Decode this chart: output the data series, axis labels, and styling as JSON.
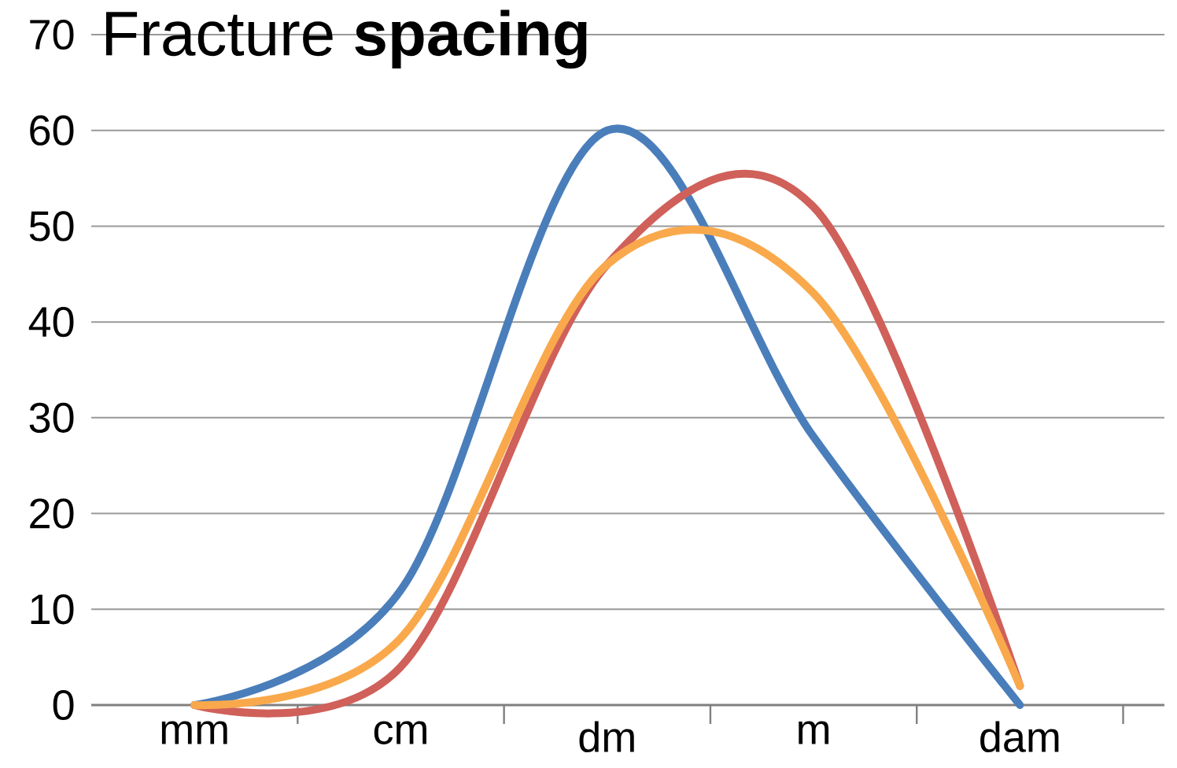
{
  "chart_data": {
    "type": "line",
    "title": "Fracture **spacing**",
    "categories": [
      "mm",
      "cm",
      "dm",
      "m",
      "dam"
    ],
    "series": [
      {
        "color": "#4a7ebb",
        "values": [
          0,
          12,
          60,
          28,
          0
        ]
      },
      {
        "color": "#d0605a",
        "values": [
          0,
          4,
          46,
          52,
          2
        ]
      },
      {
        "color": "#f9a94b",
        "values": [
          0,
          7,
          46,
          43,
          2
        ]
      }
    ],
    "ylim": [
      0,
      70
    ],
    "yticks": [
      0,
      10,
      20,
      30,
      40,
      50,
      60,
      70
    ],
    "grid": "y",
    "marker": "none",
    "line_style": "solid"
  }
}
